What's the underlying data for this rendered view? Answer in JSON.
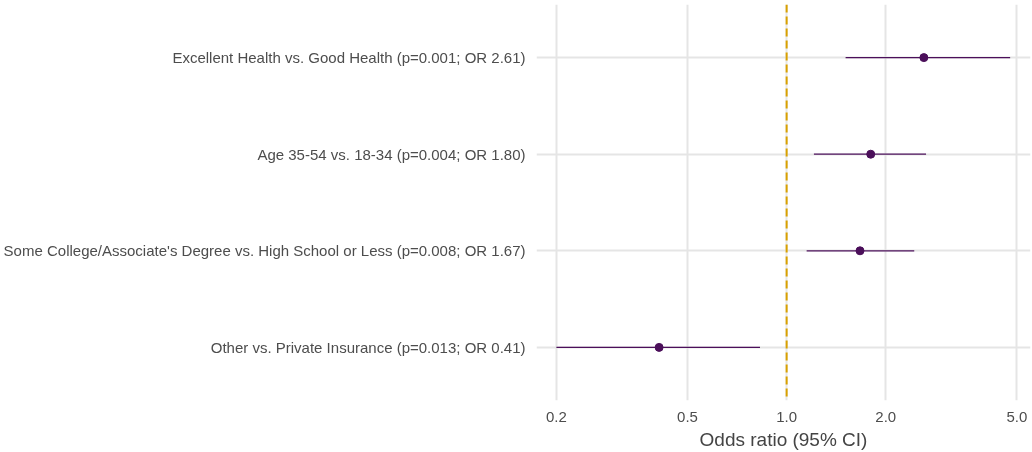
{
  "chart_data": {
    "type": "scatter",
    "orientation": "horizontal",
    "log": "x",
    "grid": true,
    "marker": "circle",
    "xlabel": "Odds ratio (95% CI)",
    "categories": [
      "Excellent Health vs. Good Health (p=0.001; OR 2.61)",
      "Age 35-54 vs. 18-34 (p=0.004; OR 1.80)",
      "Some College/Associate's Degree vs. High School or Less (p=0.008; OR 1.67)",
      "Other vs. Private Insurance (p=0.013; OR 0.41)"
    ],
    "series": [
      {
        "color": "#4b0f5a",
        "values": [
          2.61,
          1.8,
          1.67,
          0.41
        ],
        "errors": [
          [
            1.51,
            4.77
          ],
          [
            1.21,
            2.65
          ],
          [
            1.15,
            2.44
          ],
          [
            0.2,
            0.83
          ]
        ]
      }
    ],
    "xlim": [
      0.174,
      5.5
    ],
    "xticks": [
      {
        "value": 0.2,
        "label": "0.2"
      },
      {
        "value": 0.5,
        "label": "0.5"
      },
      {
        "value": 1,
        "label": "1.0"
      },
      {
        "value": 2,
        "label": "2.0"
      },
      {
        "value": 5,
        "label": "5.0"
      }
    ],
    "ref_lines": [
      {
        "axis": "x",
        "value": 1,
        "color": "#d9a100",
        "line_style": "dashed"
      }
    ]
  }
}
